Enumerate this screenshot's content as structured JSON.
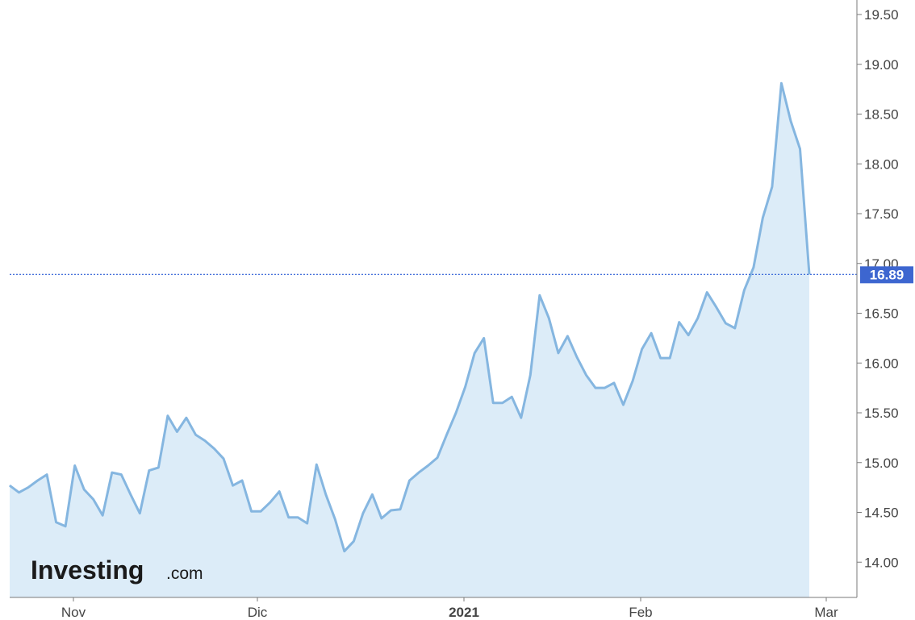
{
  "chart_data": {
    "type": "area",
    "x_tick_labels": [
      "Nov",
      "Dic",
      "2021",
      "Feb",
      "Mar"
    ],
    "y_tick_labels": [
      "14.00",
      "14.50",
      "15.00",
      "15.50",
      "16.00",
      "16.50",
      "17.00",
      "17.50",
      "18.00",
      "18.50",
      "19.00",
      "19.50"
    ],
    "ylim": [
      13.6,
      19.5
    ],
    "current_value": 16.89,
    "current_value_label": "16.89",
    "series": [
      {
        "values": [
          14.77,
          14.7,
          14.75,
          14.82,
          14.88,
          14.4,
          14.36,
          14.97,
          14.73,
          14.63,
          14.47,
          14.9,
          14.88,
          14.68,
          14.49,
          14.92,
          14.95,
          15.47,
          15.31,
          15.45,
          15.28,
          15.22,
          15.14,
          15.04,
          14.77,
          14.82,
          14.51,
          14.51,
          14.6,
          14.71,
          14.45,
          14.45,
          14.39,
          14.98,
          14.68,
          14.43,
          14.11,
          14.21,
          14.49,
          14.68,
          14.44,
          14.52,
          14.53,
          14.82,
          14.9,
          14.97,
          15.05,
          15.28,
          15.5,
          15.76,
          16.1,
          16.25,
          15.6,
          15.6,
          15.66,
          15.45,
          15.88,
          16.68,
          16.45,
          16.1,
          16.27,
          16.06,
          15.88,
          15.75,
          15.75,
          15.8,
          15.58,
          15.82,
          16.14,
          16.3,
          16.05,
          16.05,
          16.41,
          16.28,
          16.45,
          16.71,
          16.56,
          16.4,
          16.35,
          16.73,
          16.96,
          17.46,
          17.77,
          18.81,
          18.43,
          18.15,
          16.89
        ]
      }
    ],
    "colors": {
      "line": "#85b6e0",
      "fill": "#dcecf8",
      "current_line": "#2d5dd6",
      "current_label_bg": "#3d66d0",
      "axis": "#7a7a7a",
      "text": "#444444"
    }
  },
  "branding": {
    "logo_main": "Investing",
    "logo_sub": ".com"
  }
}
